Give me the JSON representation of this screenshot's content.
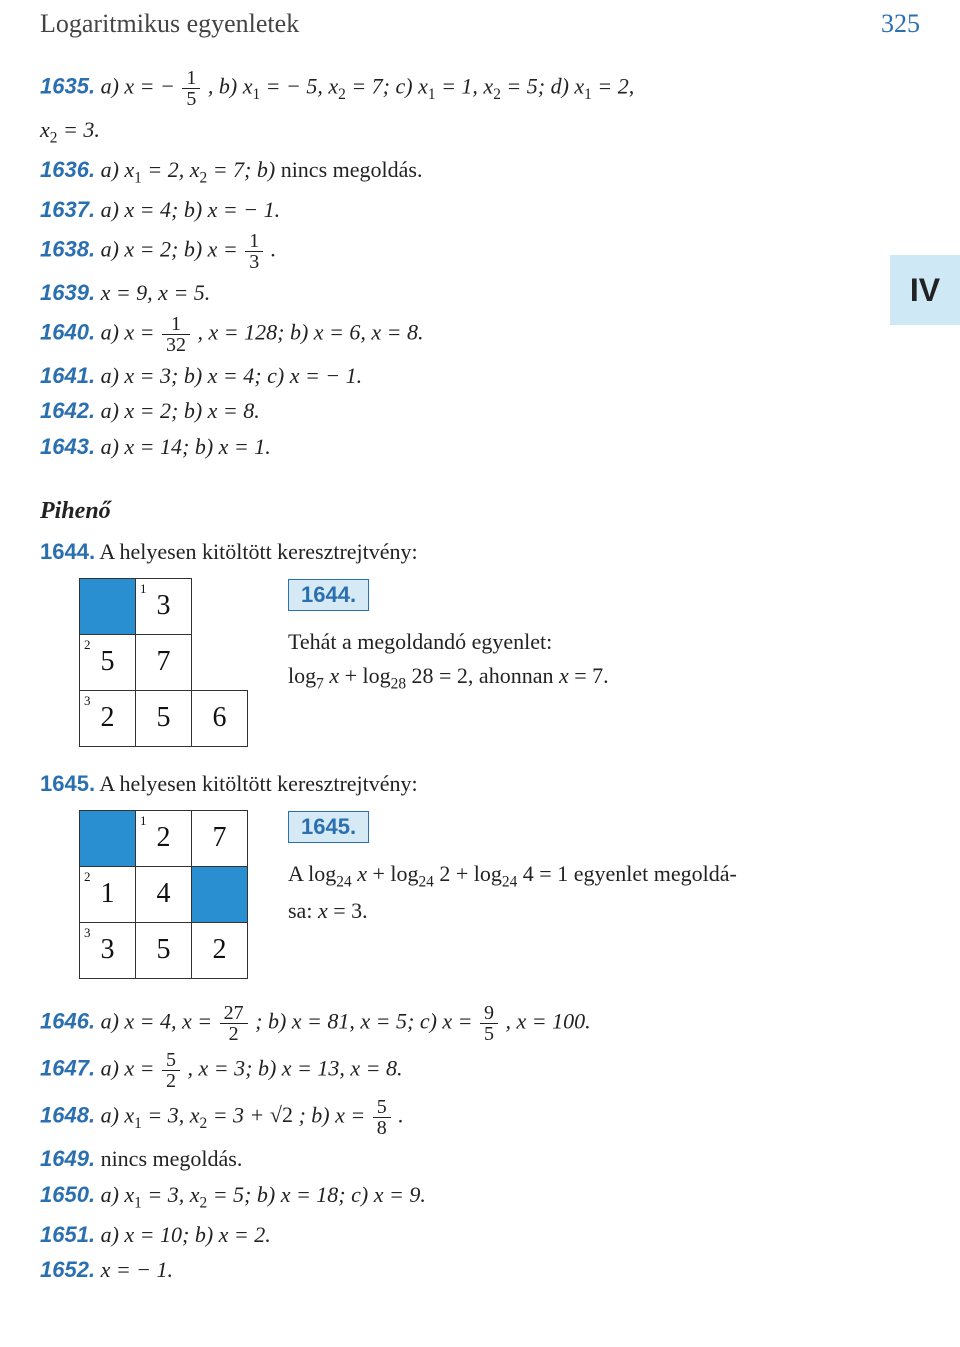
{
  "header": {
    "title": "Logaritmikus egyenletek",
    "page_number": "325",
    "header_bg_color": "#cfe8f5",
    "header_text_color": "#2a6fb0"
  },
  "chapter_marker": {
    "label": "IV",
    "bg": "#cfe8f5"
  },
  "colors": {
    "problem_number": "#2a6fb0",
    "text": "#222222",
    "cell_blue": "#2a8fd0"
  },
  "problems_top": [
    {
      "num": "1635.",
      "parts": [
        {
          "label": "a)",
          "html": "x = − <span class='frac'><span class='n'>1</span><span class='d'>5</span></span> ,"
        },
        {
          "label": "b)",
          "html": "x<sub>1</sub> = − 5,  x<sub>2</sub> = 7;"
        },
        {
          "label": "c)",
          "html": "x<sub>1</sub> = 1,  x<sub>2</sub> = 5;"
        },
        {
          "label": "d)",
          "html": "x<sub>1</sub> = 2,"
        }
      ],
      "cont": "x<sub>2</sub> = 3."
    },
    {
      "num": "1636.",
      "parts": [
        {
          "label": "a)",
          "html": "x<sub>1</sub> = 2,  x<sub>2</sub> = 7;"
        },
        {
          "label": "b)",
          "html": "<span class='up'>nincs megoldás.</span>"
        }
      ]
    },
    {
      "num": "1637.",
      "parts": [
        {
          "label": "a)",
          "html": "x = 4;"
        },
        {
          "label": "b)",
          "html": "x = − 1."
        }
      ]
    },
    {
      "num": "1638.",
      "parts": [
        {
          "label": "a)",
          "html": "x = 2;"
        },
        {
          "label": "b)",
          "html": "x = <span class='frac'><span class='n'>1</span><span class='d'>3</span></span> ."
        }
      ]
    },
    {
      "num": "1639.",
      "parts": [
        {
          "label": "",
          "html": "x = 9,  x = 5."
        }
      ]
    },
    {
      "num": "1640.",
      "parts": [
        {
          "label": "a)",
          "html": "x = <span class='frac'><span class='n'>1</span><span class='d'>32</span></span> ,  x = 128;"
        },
        {
          "label": "b)",
          "html": "x = 6,  x = 8."
        }
      ]
    },
    {
      "num": "1641.",
      "parts": [
        {
          "label": "a)",
          "html": "x = 3;"
        },
        {
          "label": "b)",
          "html": "x = 4;"
        },
        {
          "label": "c)",
          "html": "x = − 1."
        }
      ]
    },
    {
      "num": "1642.",
      "parts": [
        {
          "label": "a)",
          "html": "x = 2;"
        },
        {
          "label": "b)",
          "html": "x = 8."
        }
      ]
    },
    {
      "num": "1643.",
      "parts": [
        {
          "label": "a)",
          "html": "x = 14;"
        },
        {
          "label": "b)",
          "html": "x = 1."
        }
      ]
    }
  ],
  "heading": {
    "label": "Pihenő"
  },
  "crossword_intro_1644": {
    "num": "1644.",
    "text": "A helyesen kitöltött keresztrejtvény:"
  },
  "cross_1644": {
    "cells": [
      {
        "r": 1,
        "c": 1,
        "blue": true,
        "val": ""
      },
      {
        "r": 1,
        "c": 2,
        "blue": false,
        "val": "3",
        "sup": "1"
      },
      {
        "r": 1,
        "c": 3,
        "hidden": true
      },
      {
        "r": 2,
        "c": 1,
        "blue": false,
        "val": "5",
        "sup": "2"
      },
      {
        "r": 2,
        "c": 2,
        "blue": false,
        "val": "7"
      },
      {
        "r": 2,
        "c": 3,
        "hidden": true
      },
      {
        "r": 3,
        "c": 1,
        "blue": false,
        "val": "2",
        "sup": "3"
      },
      {
        "r": 3,
        "c": 2,
        "blue": false,
        "val": "5"
      },
      {
        "r": 3,
        "c": 3,
        "blue": false,
        "val": "6"
      }
    ],
    "badge": "1644.",
    "expl_lines": [
      "Tehát a megoldandó egyenlet:",
      "log<sub>7</sub> <span style='font-style:italic'>x</span> + log<sub>28</sub> 28 = 2,   ahonnan   <span style='font-style:italic'>x</span> = 7."
    ]
  },
  "crossword_intro_1645": {
    "num": "1645.",
    "text": "A helyesen kitöltött keresztrejtvény:"
  },
  "cross_1645": {
    "cells": [
      {
        "r": 1,
        "c": 1,
        "blue": true,
        "val": ""
      },
      {
        "r": 1,
        "c": 2,
        "blue": false,
        "val": "2",
        "sup": "1"
      },
      {
        "r": 1,
        "c": 3,
        "blue": false,
        "val": "7"
      },
      {
        "r": 2,
        "c": 1,
        "blue": false,
        "val": "1",
        "sup": "2"
      },
      {
        "r": 2,
        "c": 2,
        "blue": false,
        "val": "4"
      },
      {
        "r": 2,
        "c": 3,
        "blue": true,
        "val": ""
      },
      {
        "r": 3,
        "c": 1,
        "blue": false,
        "val": "3",
        "sup": "3"
      },
      {
        "r": 3,
        "c": 2,
        "blue": false,
        "val": "5"
      },
      {
        "r": 3,
        "c": 3,
        "blue": false,
        "val": "2"
      }
    ],
    "badge": "1645.",
    "expl_lines": [
      "A  log<sub>24</sub> <span style='font-style:italic'>x</span> + log<sub>24</sub> 2 + log<sub>24</sub> 4 = 1  egyenlet megoldá-",
      "sa:  <span style='font-style:italic'>x</span> = 3."
    ]
  },
  "problems_bottom": [
    {
      "num": "1646.",
      "parts": [
        {
          "label": "a)",
          "html": "x = 4,  x = <span class='frac'><span class='n'>27</span><span class='d'>2</span></span> ;"
        },
        {
          "label": "b)",
          "html": "x = 81,  x = 5;"
        },
        {
          "label": "c)",
          "html": "x = <span class='frac'><span class='n'>9</span><span class='d'>5</span></span> ,  x = 100."
        }
      ]
    },
    {
      "num": "1647.",
      "parts": [
        {
          "label": "a)",
          "html": "x = <span class='frac'><span class='n'>5</span><span class='d'>2</span></span> ,  x = 3;"
        },
        {
          "label": "b)",
          "html": "x = 13,  x = 8."
        }
      ]
    },
    {
      "num": "1648.",
      "parts": [
        {
          "label": "a)",
          "html": "x<sub>1</sub> = 3,  x<sub>2</sub> = 3 + <span class='sqrt'>√2</span> ;"
        },
        {
          "label": "b)",
          "html": "x = <span class='frac'><span class='n'>5</span><span class='d'>8</span></span> ."
        }
      ]
    },
    {
      "num": "1649.",
      "parts": [
        {
          "label": "",
          "html": "<span class='up'>nincs megoldás.</span>"
        }
      ]
    },
    {
      "num": "1650.",
      "parts": [
        {
          "label": "a)",
          "html": "x<sub>1</sub> = 3,  x<sub>2</sub> = 5;"
        },
        {
          "label": "b)",
          "html": "x = 18;"
        },
        {
          "label": "c)",
          "html": "x = 9."
        }
      ]
    },
    {
      "num": "1651.",
      "parts": [
        {
          "label": "a)",
          "html": "x = 10;"
        },
        {
          "label": "b)",
          "html": "x = 2."
        }
      ]
    },
    {
      "num": "1652.",
      "parts": [
        {
          "label": "",
          "html": "x = − 1."
        }
      ]
    }
  ]
}
